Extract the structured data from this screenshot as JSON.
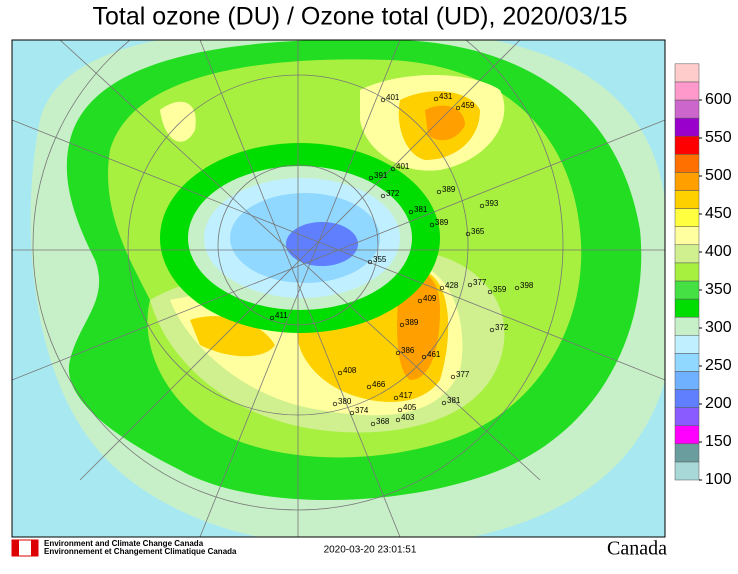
{
  "header": {
    "title": "Total ozone (DU) / Ozone total (UD), 2020/03/15"
  },
  "colorbar": {
    "ticks": [
      100,
      150,
      200,
      250,
      300,
      350,
      400,
      450,
      500,
      550,
      600
    ],
    "colors": [
      "#a8d8d8",
      "#6a9e9e",
      "#ff00ff",
      "#8a5cff",
      "#5f7fff",
      "#6fb0ff",
      "#90d8ff",
      "#c0f0ff",
      "#c8f0c8",
      "#00dd00",
      "#44e044",
      "#a8f040",
      "#d0f090",
      "#ffffa0",
      "#ffff40",
      "#ffd000",
      "#ffa000",
      "#ff7000",
      "#ff0000",
      "#9900cc",
      "#cc66cc",
      "#ff99cc",
      "#ffcccc"
    ]
  },
  "stations": [
    401,
    431,
    459,
    401,
    391,
    372,
    389,
    393,
    381,
    389,
    365,
    355,
    377,
    359,
    398,
    428,
    409,
    411,
    389,
    372,
    461,
    386,
    408,
    466,
    377,
    417,
    381,
    380,
    405,
    374,
    403,
    368
  ],
  "footer": {
    "agency_en": "Environment and Climate Change Canada",
    "agency_fr": "Environnement et Changement Climatique Canada",
    "timestamp": "2020-03-20 23:01:51",
    "wordmark": "Canada"
  }
}
